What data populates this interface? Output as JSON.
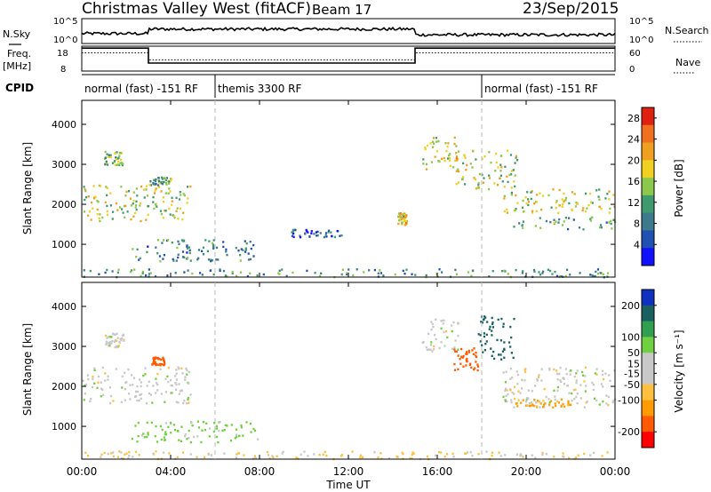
{
  "header": {
    "station": "Christmas Valley West (fitACF)",
    "beam": "Beam 17",
    "date": "23/Sep/2015"
  },
  "strip_labels": {
    "nsky": "N.Sky",
    "nsearch": "N.Search",
    "freq_line1": "Freq.",
    "freq_line2": "[MHz]",
    "nave": "Nave",
    "cpid": "CPID"
  },
  "strip_ticks": {
    "nsky_top": "10^5",
    "nsky_bottom": "10^0",
    "nsearch_top": "10^5",
    "nsearch_bottom": "10^0",
    "freq_top": "18",
    "freq_bottom": "8",
    "nave_top": "60",
    "nave_bottom": "0"
  },
  "cpid_segments": [
    {
      "label": "normal (fast) -151 RF",
      "start": 0,
      "end": 6
    },
    {
      "label": "themis 3300 RF",
      "start": 6,
      "end": 18
    },
    {
      "label": "normal (fast) -151 RF",
      "start": 18,
      "end": 24
    }
  ],
  "colors": {
    "power_scale": [
      "#1010ff",
      "#2050b0",
      "#3c7a8c",
      "#3f9a6e",
      "#8cc84a",
      "#f0d020",
      "#f0a020",
      "#f07020",
      "#e02010"
    ],
    "velocity_scale": [
      "#ff0000",
      "#ff5a00",
      "#ff9a00",
      "#ffc040",
      "#c8c8c8",
      "#c8c8c8",
      "#70d040",
      "#30a050",
      "#1a6060",
      "#1030c0"
    ]
  },
  "chart_data": [
    {
      "type": "line",
      "name": "frequency-panel",
      "xlim": [
        0,
        24
      ],
      "ylim": [
        8,
        18
      ],
      "series": [
        {
          "name": "Freq.",
          "x": [
            0,
            3,
            3,
            15,
            15,
            24
          ],
          "values": [
            17.2,
            17.2,
            11.2,
            11.2,
            17.2,
            17.2
          ]
        },
        {
          "name": "Nave",
          "x": [
            0,
            3,
            3,
            15,
            15,
            24
          ],
          "values": [
            44,
            44,
            27,
            27,
            44,
            44
          ]
        }
      ]
    },
    {
      "type": "heatmap",
      "name": "power-panel",
      "xlabel": "",
      "ylabel": "Slant Range [km]",
      "xlim": [
        0,
        24
      ],
      "ylim": [
        180,
        4600
      ],
      "yticks": [
        1000,
        2000,
        3000,
        4000
      ],
      "colorbar": {
        "label": "Power [dB]",
        "ticks": [
          4,
          8,
          12,
          16,
          20,
          24,
          28
        ],
        "range": [
          0,
          30
        ]
      },
      "regions": [
        {
          "t0": 0.0,
          "t1": 4.9,
          "r0": 1600,
          "r1": 2500,
          "value": 16
        },
        {
          "t0": 1.0,
          "t1": 1.9,
          "r0": 3000,
          "r1": 3350,
          "value": 14
        },
        {
          "t0": 3.0,
          "t1": 4.0,
          "r0": 2500,
          "r1": 2700,
          "value": 12
        },
        {
          "t0": 2.2,
          "t1": 7.9,
          "r0": 600,
          "r1": 1150,
          "value": 9
        },
        {
          "t0": 9.4,
          "t1": 11.7,
          "r0": 1200,
          "r1": 1400,
          "value": 7
        },
        {
          "t0": 14.2,
          "t1": 14.6,
          "r0": 1500,
          "r1": 1800,
          "value": 18
        },
        {
          "t0": 15.3,
          "t1": 16.9,
          "r0": 2900,
          "r1": 3700,
          "value": 18
        },
        {
          "t0": 16.8,
          "t1": 19.6,
          "r0": 2400,
          "r1": 3400,
          "value": 16
        },
        {
          "t0": 18.9,
          "t1": 24.0,
          "r0": 1800,
          "r1": 2400,
          "value": 17
        },
        {
          "t0": 19.4,
          "t1": 24.0,
          "r0": 1400,
          "r1": 1700,
          "value": 12
        },
        {
          "t0": 0.0,
          "t1": 24.0,
          "r0": 200,
          "r1": 400,
          "value": 10
        }
      ]
    },
    {
      "type": "heatmap",
      "name": "velocity-panel",
      "xlabel": "Time UT",
      "ylabel": "Slant Range [km]",
      "xlim": [
        0,
        24
      ],
      "ylim": [
        180,
        4600
      ],
      "yticks": [
        1000,
        2000,
        3000,
        4000
      ],
      "xticks": [
        "00:00",
        "04:00",
        "08:00",
        "12:00",
        "16:00",
        "20:00",
        "00:00"
      ],
      "colorbar": {
        "label": "Velocity [m s⁻¹]",
        "ticks": [
          -200,
          -100,
          -50,
          -15,
          15,
          50,
          100,
          200
        ],
        "range": [
          -250,
          250
        ]
      },
      "regions": [
        {
          "t0": 0.0,
          "t1": 4.9,
          "r0": 1600,
          "r1": 2500,
          "value": 0
        },
        {
          "t0": 1.0,
          "t1": 1.9,
          "r0": 3000,
          "r1": 3350,
          "value": 0
        },
        {
          "t0": 3.1,
          "t1": 3.7,
          "r0": 2550,
          "r1": 2750,
          "value": -120
        },
        {
          "t0": 2.2,
          "t1": 7.9,
          "r0": 600,
          "r1": 1150,
          "value": 30
        },
        {
          "t0": 15.3,
          "t1": 16.9,
          "r0": 2900,
          "r1": 3700,
          "value": 0
        },
        {
          "t0": 16.7,
          "t1": 17.8,
          "r0": 2400,
          "r1": 3000,
          "value": -180
        },
        {
          "t0": 17.8,
          "t1": 19.5,
          "r0": 2700,
          "r1": 3800,
          "value": 150
        },
        {
          "t0": 18.9,
          "t1": 24.0,
          "r0": 1500,
          "r1": 2500,
          "value": 0
        },
        {
          "t0": 19.5,
          "t1": 22.0,
          "r0": 1500,
          "r1": 1700,
          "value": -60
        },
        {
          "t0": 0.0,
          "t1": 24.0,
          "r0": 200,
          "r1": 400,
          "value": -20
        }
      ]
    }
  ]
}
